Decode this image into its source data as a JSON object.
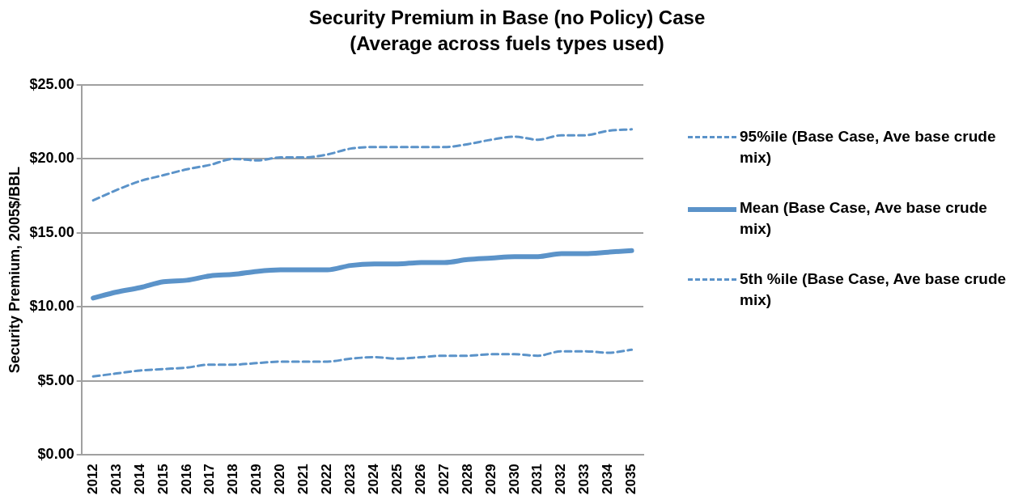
{
  "chart_data": {
    "type": "line",
    "title": "Security Premium in Base (no Policy) Case",
    "subtitle": "(Average across fuels types used)",
    "ylabel": "Security Premium, 2005$/BBL",
    "categories": [
      "2012",
      "2013",
      "2014",
      "2015",
      "2016",
      "2017",
      "2018",
      "2019",
      "2020",
      "2021",
      "2022",
      "2023",
      "2024",
      "2025",
      "2026",
      "2027",
      "2028",
      "2029",
      "2030",
      "2031",
      "2032",
      "2033",
      "2034",
      "2035"
    ],
    "ylim": [
      0,
      25
    ],
    "yticks": [
      {
        "value": 0,
        "label": "$0.00"
      },
      {
        "value": 5,
        "label": "$5.00"
      },
      {
        "value": 10,
        "label": "$10.00"
      },
      {
        "value": 15,
        "label": "$15.00"
      },
      {
        "value": 20,
        "label": "$20.00"
      },
      {
        "value": 25,
        "label": "$25.00"
      }
    ],
    "grid": "y",
    "legend": "right",
    "marker": "none",
    "series": [
      {
        "name": "95%ile  (Base Case, Ave base crude mix)",
        "color": "#5b93c9",
        "line_style": "dashed",
        "values": [
          17.2,
          17.9,
          18.5,
          18.9,
          19.3,
          19.6,
          20.0,
          19.9,
          20.1,
          20.1,
          20.3,
          20.7,
          20.8,
          20.8,
          20.8,
          20.8,
          21.0,
          21.3,
          21.5,
          21.3,
          21.6,
          21.6,
          21.9,
          22.0
        ]
      },
      {
        "name": "Mean  (Base Case, Ave base crude mix)",
        "color": "#5b93c9",
        "line_style": "solid",
        "values": [
          10.6,
          11.0,
          11.3,
          11.7,
          11.8,
          12.1,
          12.2,
          12.4,
          12.5,
          12.5,
          12.5,
          12.8,
          12.9,
          12.9,
          13.0,
          13.0,
          13.2,
          13.3,
          13.4,
          13.4,
          13.6,
          13.6,
          13.7,
          13.8
        ]
      },
      {
        "name": "5th %ile  (Base Case, Ave base crude mix)",
        "color": "#5b93c9",
        "line_style": "dashed",
        "values": [
          5.3,
          5.5,
          5.7,
          5.8,
          5.9,
          6.1,
          6.1,
          6.2,
          6.3,
          6.3,
          6.3,
          6.5,
          6.6,
          6.5,
          6.6,
          6.7,
          6.7,
          6.8,
          6.8,
          6.7,
          7.0,
          7.0,
          6.9,
          7.1
        ]
      }
    ]
  }
}
